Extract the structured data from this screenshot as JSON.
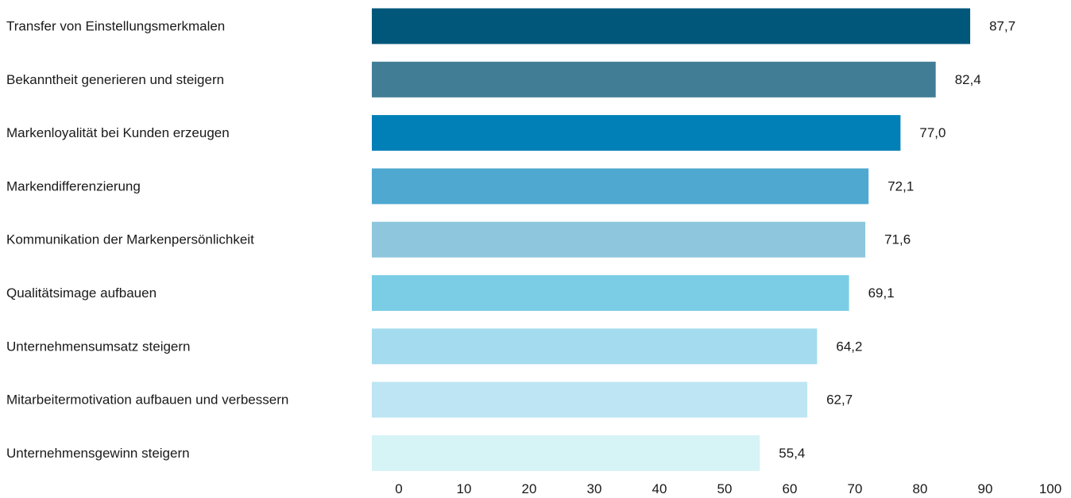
{
  "chart_data": {
    "type": "bar",
    "orientation": "horizontal",
    "categories": [
      "Transfer von Einstellungsmerkmalen",
      "Bekanntheit generieren und steigern",
      "Markenloyalität bei Kunden erzeugen",
      "Markendifferenzierung",
      "Kommunikation der Markenpersönlichkeit",
      "Qualitätsimage aufbauen",
      "Unternehmensumsatz steigern",
      "Mitarbeitermotivation aufbauen und verbessern",
      "Unternehmensgewinn steigern"
    ],
    "values": [
      87.7,
      82.4,
      77.0,
      72.1,
      71.6,
      69.1,
      64.2,
      62.7,
      55.4
    ],
    "value_labels": [
      "87,7",
      "82,4",
      "77,0",
      "72,1",
      "71,6",
      "69,1",
      "64,2",
      "62,7",
      "55,4"
    ],
    "bar_colors": [
      "#005779",
      "#417e96",
      "#0080b7",
      "#4ea8cf",
      "#8dc6dd",
      "#7bcde6",
      "#a4dbee",
      "#bde5f3",
      "#d6f3f6"
    ],
    "xlim": [
      0,
      100
    ],
    "xticks": [
      0,
      10,
      20,
      30,
      40,
      50,
      60,
      70,
      80,
      90,
      100
    ],
    "xtick_labels": [
      "0",
      "10",
      "20",
      "30",
      "40",
      "50",
      "60",
      "70",
      "80",
      "90",
      "100"
    ],
    "title": "",
    "xlabel": "",
    "ylabel": "",
    "grid": false,
    "legend": "none"
  }
}
